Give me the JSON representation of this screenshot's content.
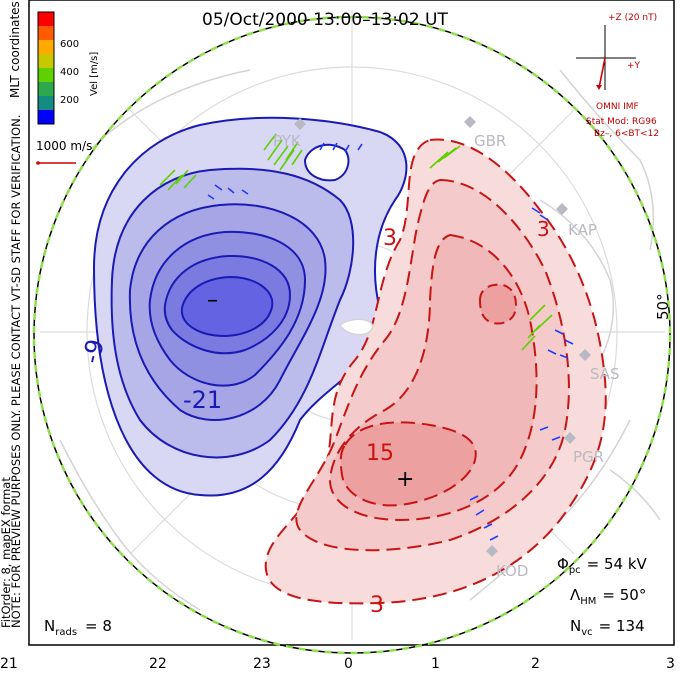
{
  "title": "05/Oct/2000 13:00–13:02 UT",
  "coord_label": "MLT coordinates",
  "colorbar": {
    "label": "Vel [m/s]",
    "ticks": [
      "600",
      "400",
      "200"
    ],
    "colors": [
      "#ff0000",
      "#ff5a00",
      "#ffaa00",
      "#c8c800",
      "#5fd000",
      "#2da84a",
      "#148c82",
      "#1f3cff",
      "#0000ff"
    ]
  },
  "scale_arrow_label": "1000 m/s",
  "preview_note": "NOTE: FOR PREVIEW PURPOSES ONLY. PLEASE CONTACT VT-SD STAFF FOR VERIFICATION.",
  "fit_note": "FitOrder: 8, mapEX format",
  "imf": {
    "z_label": "+Z (20 nT)",
    "y_label": "+Y",
    "source": "OMNI IMF",
    "model": "Stat Mod: RG96",
    "condition": "Bz–, 6<BT<12"
  },
  "latitude_label": "50°",
  "stations": [
    "GBR",
    "KAP",
    "SAS",
    "PGR",
    "KOD",
    "PYK"
  ],
  "contour_labels": {
    "neg_a": "-9",
    "neg_b": "-21",
    "pos_a": "3",
    "pos_b": "15",
    "pos_c": "3",
    "pos_d": "3"
  },
  "extrema": {
    "min_marker": "–",
    "max_marker": "+"
  },
  "stats": {
    "phi_pc": "Φ",
    "phi_pc_sub": "pc",
    "phi_pc_value": "= 54 kV",
    "lambda_hm": "Λ",
    "lambda_hm_sub": "HM",
    "lambda_hm_value": "= 50°",
    "n_vc": "N",
    "n_vc_sub": "vc",
    "n_vc_value": "= 134",
    "n_rads": "N",
    "n_rads_sub": "rads",
    "n_rads_value": "= 8"
  },
  "mlt_ticks": [
    "21",
    "22",
    "23",
    "0",
    "1",
    "2",
    "3"
  ],
  "colors": {
    "negative_fill": "#5a5ae8",
    "negative_line": "#1a1ab4",
    "positive_fill": "#f0a0a0",
    "positive_line": "#c81414",
    "boundary": "#8ee04a"
  }
}
